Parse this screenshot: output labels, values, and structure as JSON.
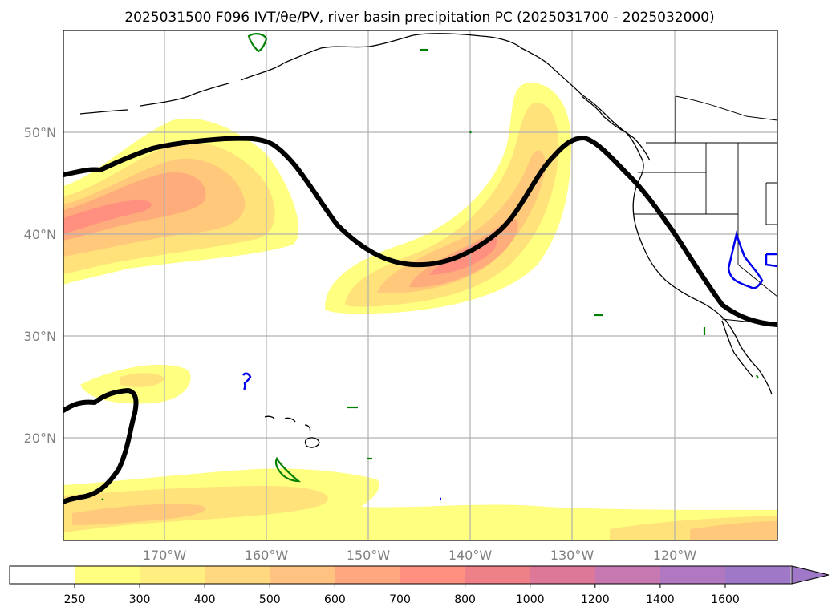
{
  "title": "2025031500 F096 IVT/θe/PV, river basin precipitation PC (2025031700 - 2025032000)",
  "map": {
    "lat_labels": [
      "50°N",
      "40°N",
      "30°N",
      "20°N"
    ],
    "lon_labels": [
      "170°W",
      "160°W",
      "150°W",
      "140°W",
      "130°W",
      "120°W"
    ]
  },
  "colorbar": {
    "labels": [
      "250",
      "300",
      "400",
      "500",
      "600",
      "700",
      "800",
      "1000",
      "1200",
      "1400",
      "1600"
    ],
    "colors": [
      "#ffff80",
      "#ffee80",
      "#ffd880",
      "#ffc280",
      "#ffa880",
      "#ff9080",
      "#ee8088",
      "#dd7898",
      "#c878b0",
      "#b078c0",
      "#a078c8"
    ]
  },
  "ivt_fill_colors": [
    "#ffff80",
    "#ffe27a",
    "#ffc87a",
    "#ffac7c",
    "#ff9080"
  ],
  "colors": {
    "jet_contour": "#000000",
    "pv_contour": "#0000ee",
    "theta_contour": "#008000",
    "frame": "#000000"
  }
}
